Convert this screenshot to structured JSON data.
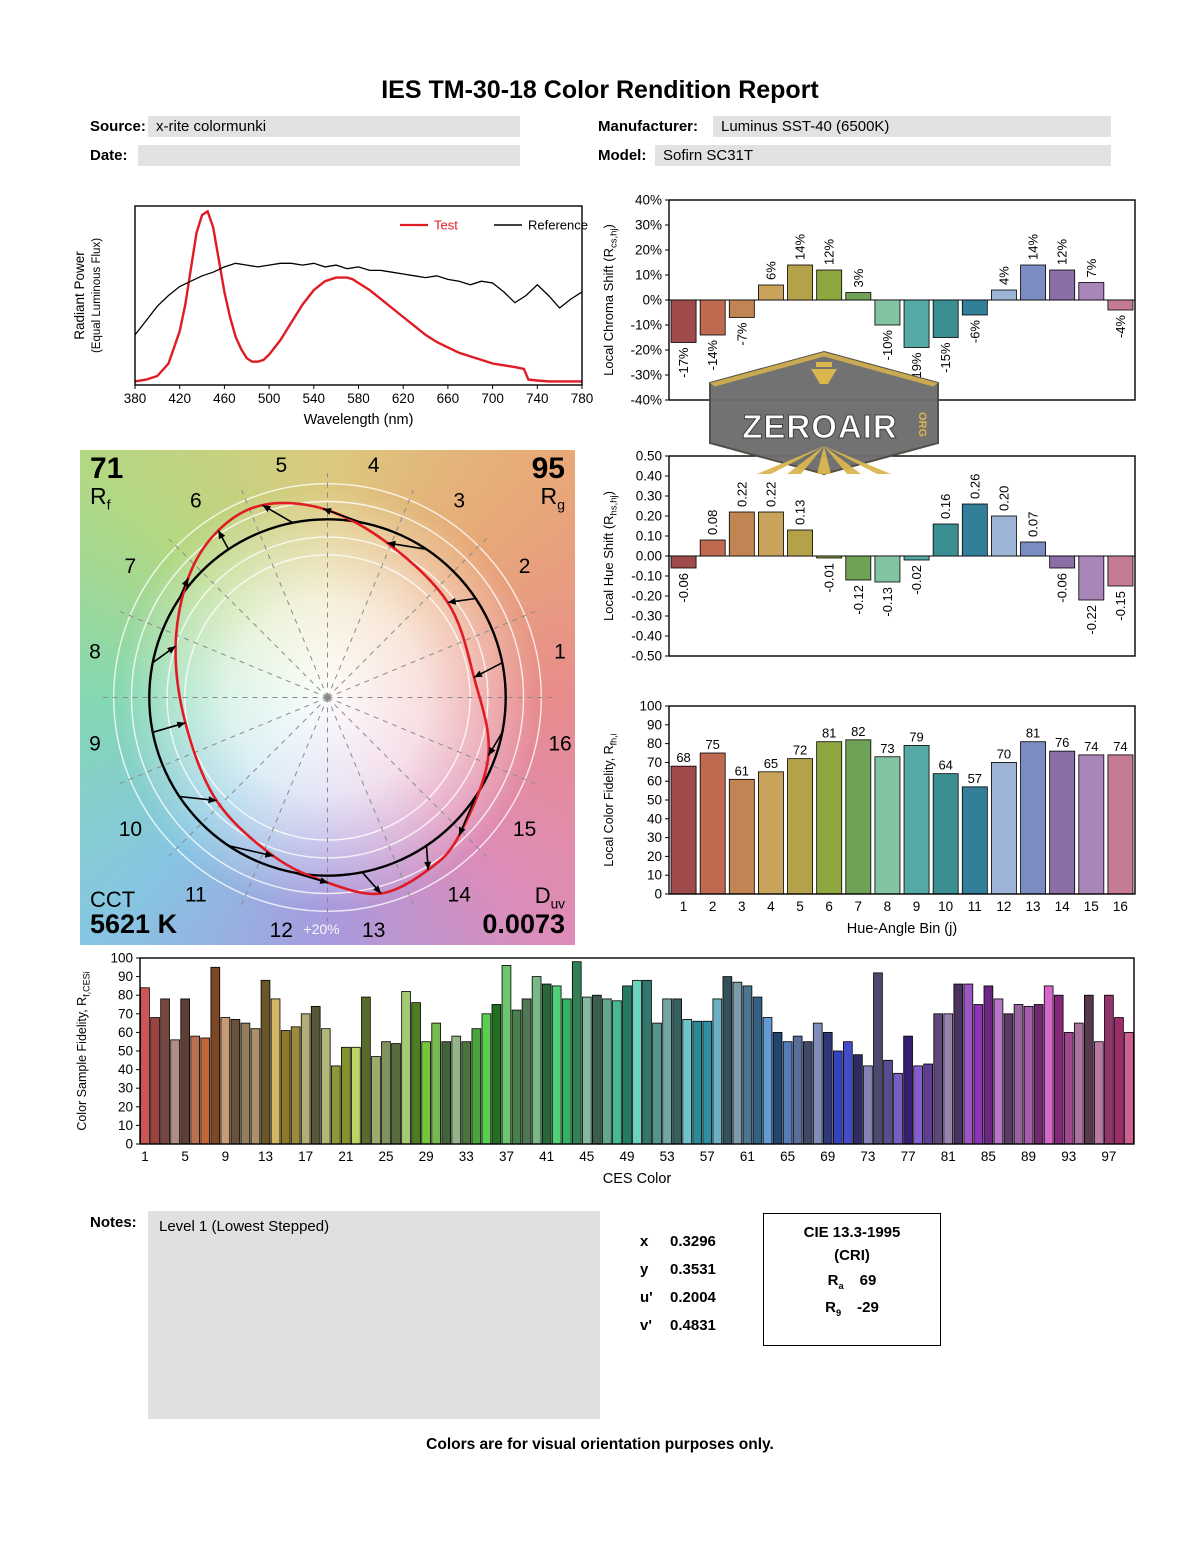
{
  "title": "IES TM-30-18 Color Rendition Report",
  "header": {
    "source_label": "Source:",
    "source_value": "x-rite colormunki",
    "date_label": "Date:",
    "date_value": "",
    "manufacturer_label": "Manufacturer:",
    "manufacturer_value": "Luminus SST-40 (6500K)",
    "model_label": "Model:",
    "model_value": "Sofirn SC31T"
  },
  "notes": {
    "label": "Notes:",
    "value": "Level 1 (Lowest Stepped)"
  },
  "chromaticity": {
    "rows": [
      {
        "label": "x",
        "value": "0.3296"
      },
      {
        "label": "y",
        "value": "0.3531"
      },
      {
        "label": "u'",
        "value": "0.2004"
      },
      {
        "label": "v'",
        "value": "0.4831"
      }
    ]
  },
  "cri": {
    "title": "CIE 13.3-1995",
    "subtitle": "(CRI)",
    "ra_label": "R",
    "ra_sub": "a",
    "ra_value": "69",
    "r9_label": "R",
    "r9_sub": "9",
    "r9_value": "-29"
  },
  "cvg_labels": {
    "rf_value": "71",
    "rf_label": "R",
    "rf_sub": "f",
    "rg_value": "95",
    "rg_label": "R",
    "rg_sub": "g",
    "cct_label": "CCT",
    "cct_value": "5621 K",
    "duv_label": "D",
    "duv_sub": "uv",
    "duv_value": "0.0073"
  },
  "watermark": {
    "text": "ZEROAIR",
    "suffix": "ORG"
  },
  "footer": "Colors are for visual orientation purposes only.",
  "palette": {
    "bins": [
      "#a04a4c",
      "#bf6a50",
      "#c08552",
      "#c9a35c",
      "#b3a24a",
      "#8fa73f",
      "#6fa257",
      "#82c4a2",
      "#55aaa5",
      "#3a8f93",
      "#337f99",
      "#9db4d6",
      "#7a8cc2",
      "#8a6fa6",
      "#a886b8",
      "#c57b92"
    ]
  },
  "chart_data": [
    {
      "id": "spd",
      "type": "line",
      "xlabel": "Wavelength (nm)",
      "ylabel_lines": [
        "Radiant Power",
        "(Equal Luminous Flux)"
      ],
      "xlim": [
        380,
        780
      ],
      "xticks": [
        380,
        420,
        460,
        500,
        540,
        580,
        620,
        660,
        700,
        740,
        780
      ],
      "legend": [
        {
          "name": "Test",
          "color": "#e01b24"
        },
        {
          "name": "Reference",
          "color": "#000000"
        }
      ],
      "series": [
        {
          "name": "Test",
          "color": "#e01b24",
          "points": [
            [
              380,
              0.02
            ],
            [
              390,
              0.03
            ],
            [
              400,
              0.05
            ],
            [
              410,
              0.12
            ],
            [
              420,
              0.3
            ],
            [
              425,
              0.45
            ],
            [
              430,
              0.65
            ],
            [
              435,
              0.85
            ],
            [
              440,
              0.95
            ],
            [
              445,
              0.97
            ],
            [
              450,
              0.88
            ],
            [
              455,
              0.7
            ],
            [
              460,
              0.52
            ],
            [
              465,
              0.38
            ],
            [
              470,
              0.27
            ],
            [
              475,
              0.2
            ],
            [
              480,
              0.15
            ],
            [
              485,
              0.13
            ],
            [
              490,
              0.13
            ],
            [
              495,
              0.14
            ],
            [
              500,
              0.17
            ],
            [
              510,
              0.25
            ],
            [
              520,
              0.35
            ],
            [
              530,
              0.45
            ],
            [
              540,
              0.53
            ],
            [
              550,
              0.58
            ],
            [
              560,
              0.6
            ],
            [
              570,
              0.6
            ],
            [
              575,
              0.59
            ],
            [
              580,
              0.57
            ],
            [
              590,
              0.53
            ],
            [
              600,
              0.48
            ],
            [
              610,
              0.43
            ],
            [
              620,
              0.38
            ],
            [
              630,
              0.33
            ],
            [
              640,
              0.28
            ],
            [
              650,
              0.24
            ],
            [
              660,
              0.21
            ],
            [
              670,
              0.18
            ],
            [
              680,
              0.16
            ],
            [
              690,
              0.14
            ],
            [
              700,
              0.12
            ],
            [
              710,
              0.11
            ],
            [
              720,
              0.1
            ],
            [
              728,
              0.09
            ],
            [
              732,
              0.03
            ],
            [
              740,
              0.025
            ],
            [
              750,
              0.02
            ],
            [
              760,
              0.02
            ],
            [
              770,
              0.02
            ],
            [
              780,
              0.02
            ]
          ]
        },
        {
          "name": "Reference",
          "color": "#000000",
          "points": [
            [
              380,
              0.28
            ],
            [
              390,
              0.36
            ],
            [
              400,
              0.44
            ],
            [
              410,
              0.5
            ],
            [
              420,
              0.55
            ],
            [
              430,
              0.58
            ],
            [
              440,
              0.61
            ],
            [
              450,
              0.63
            ],
            [
              460,
              0.66
            ],
            [
              470,
              0.68
            ],
            [
              480,
              0.67
            ],
            [
              490,
              0.66
            ],
            [
              500,
              0.67
            ],
            [
              510,
              0.68
            ],
            [
              520,
              0.68
            ],
            [
              530,
              0.67
            ],
            [
              540,
              0.68
            ],
            [
              550,
              0.66
            ],
            [
              560,
              0.67
            ],
            [
              570,
              0.65
            ],
            [
              580,
              0.66
            ],
            [
              590,
              0.64
            ],
            [
              600,
              0.64
            ],
            [
              610,
              0.63
            ],
            [
              620,
              0.62
            ],
            [
              630,
              0.61
            ],
            [
              640,
              0.6
            ],
            [
              650,
              0.61
            ],
            [
              660,
              0.59
            ],
            [
              670,
              0.58
            ],
            [
              680,
              0.56
            ],
            [
              690,
              0.58
            ],
            [
              700,
              0.57
            ],
            [
              710,
              0.52
            ],
            [
              720,
              0.46
            ],
            [
              730,
              0.5
            ],
            [
              740,
              0.56
            ],
            [
              750,
              0.5
            ],
            [
              760,
              0.43
            ],
            [
              770,
              0.48
            ],
            [
              780,
              0.52
            ]
          ]
        }
      ]
    },
    {
      "id": "chroma_shift",
      "type": "bar",
      "categories": [
        1,
        2,
        3,
        4,
        5,
        6,
        7,
        8,
        9,
        10,
        11,
        12,
        13,
        14,
        15,
        16
      ],
      "values": [
        -17,
        -14,
        -7,
        6,
        14,
        12,
        3,
        -10,
        -19,
        -15,
        -6,
        4,
        14,
        12,
        7,
        -4
      ],
      "ylim": [
        -40,
        40
      ],
      "ystep": 10,
      "ylabel_parts": [
        "Local Chroma Shift (R",
        {
          "sub": "cs,hj"
        },
        ")"
      ]
    },
    {
      "id": "hue_shift",
      "type": "bar",
      "categories": [
        1,
        2,
        3,
        4,
        5,
        6,
        7,
        8,
        9,
        10,
        11,
        12,
        13,
        14,
        15,
        16
      ],
      "values": [
        -0.06,
        0.08,
        0.22,
        0.22,
        0.13,
        -0.01,
        -0.12,
        -0.13,
        -0.02,
        0.16,
        0.26,
        0.2,
        0.07,
        -0.06,
        -0.22,
        -0.15
      ],
      "ylim": [
        -0.5,
        0.5
      ],
      "ystep": 0.1,
      "ylabel_parts": [
        "Local Hue Shift (R",
        {
          "sub": "hs,hj"
        },
        ")"
      ]
    },
    {
      "id": "fidelity16",
      "type": "bar",
      "categories": [
        1,
        2,
        3,
        4,
        5,
        6,
        7,
        8,
        9,
        10,
        11,
        12,
        13,
        14,
        15,
        16
      ],
      "values": [
        68,
        75,
        61,
        65,
        72,
        81,
        82,
        73,
        79,
        64,
        57,
        70,
        81,
        76,
        74,
        74
      ],
      "ylim": [
        0,
        100
      ],
      "ystep": 10,
      "xlabel": "Hue-Angle Bin (j)",
      "ylabel_parts": [
        "Local Color Fidelity, R",
        {
          "sub": "fh,i"
        }
      ]
    },
    {
      "id": "ces",
      "type": "bar",
      "values": [
        84,
        68,
        78,
        56,
        78,
        58,
        57,
        95,
        68,
        67,
        65,
        62,
        88,
        78,
        61,
        63,
        70,
        74,
        62,
        42,
        52,
        52,
        79,
        47,
        55,
        54,
        82,
        76,
        55,
        65,
        55,
        58,
        55,
        62,
        70,
        75,
        96,
        72,
        78,
        90,
        86,
        85,
        78,
        98,
        79,
        80,
        78,
        77,
        85,
        88,
        88,
        65,
        78,
        78,
        67,
        66,
        66,
        78,
        90,
        87,
        85,
        79,
        68,
        60,
        55,
        58,
        55,
        65,
        60,
        50,
        55,
        48,
        42,
        92,
        45,
        38,
        58,
        42,
        43,
        70,
        70,
        86,
        86,
        75,
        85,
        78,
        70,
        75,
        74,
        75,
        85,
        80,
        60,
        65,
        80,
        55,
        80,
        68,
        60
      ],
      "ylim": [
        0,
        100
      ],
      "ystep": 10,
      "xlabel": "CES Color",
      "xticks": [
        1,
        5,
        9,
        13,
        17,
        21,
        25,
        29,
        33,
        37,
        41,
        45,
        49,
        53,
        57,
        61,
        65,
        69,
        73,
        77,
        81,
        85,
        89,
        93,
        97
      ],
      "ylabel_parts": [
        "Color Sample Fidelity, R",
        {
          "sub": "f,CESi"
        }
      ]
    },
    {
      "id": "cvg",
      "type": "vector",
      "bins": [
        1,
        2,
        3,
        4,
        5,
        6,
        7,
        8,
        9,
        10,
        11,
        12,
        13,
        14,
        15,
        16
      ],
      "ring_label": "+20%"
    }
  ]
}
